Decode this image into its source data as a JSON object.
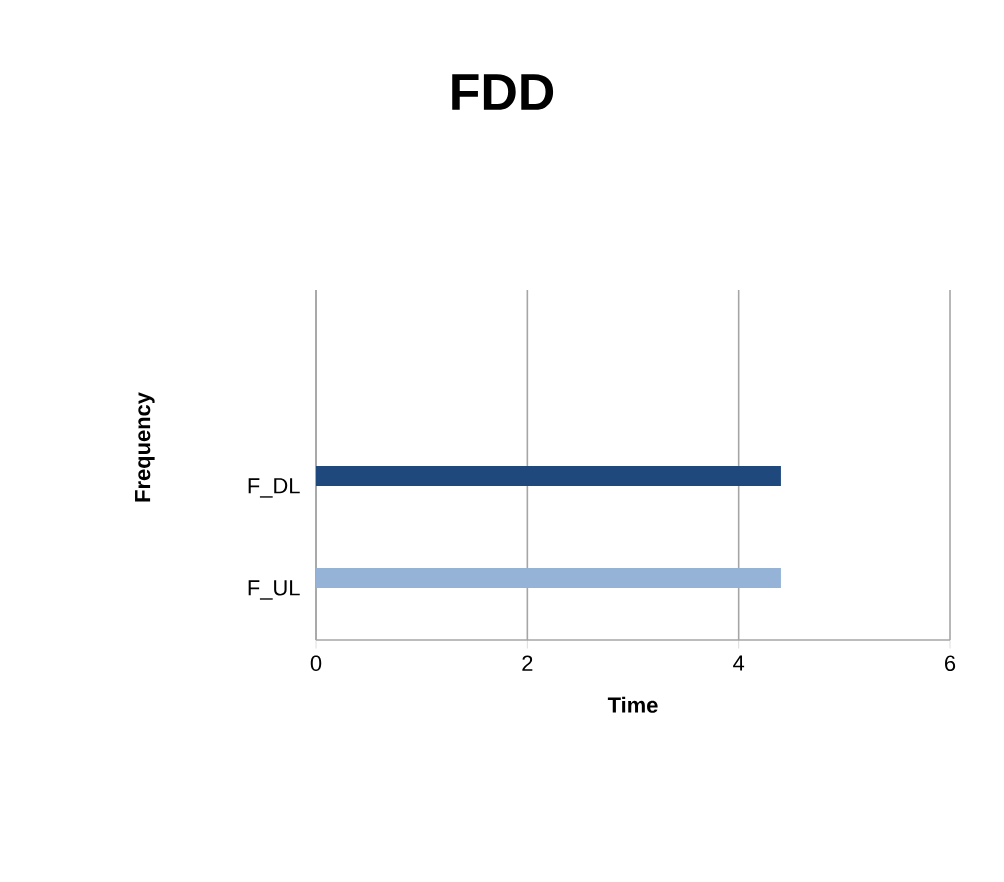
{
  "chart_data": {
    "type": "bar",
    "orientation": "horizontal",
    "title": "FDD",
    "xlabel": "Time",
    "ylabel": "Frequency",
    "categories": [
      "F_DL",
      "F_UL"
    ],
    "values": [
      4.4,
      4.4
    ],
    "colors": [
      "#1f497d",
      "#95b3d7"
    ],
    "xlim": [
      0,
      6
    ],
    "xticks": [
      0,
      2,
      4,
      6
    ],
    "grid": "x"
  }
}
